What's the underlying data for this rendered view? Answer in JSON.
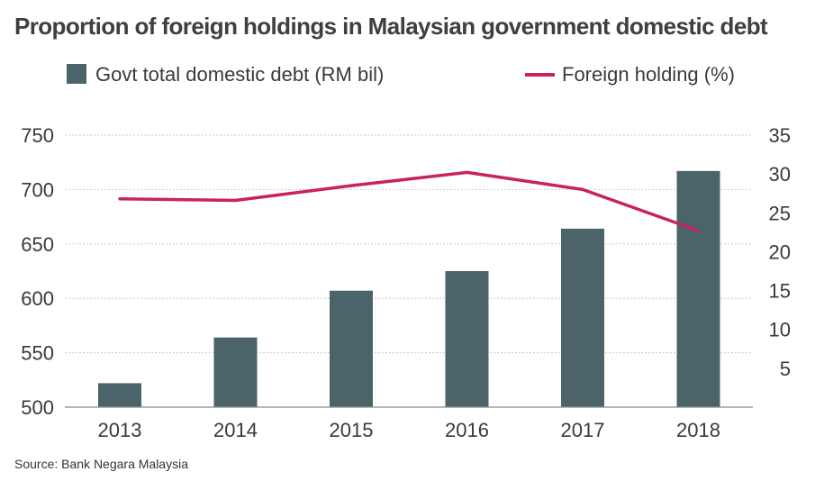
{
  "chart_data": {
    "type": "bar",
    "title": "Proportion of foreign holdings in Malaysian government domestic debt",
    "categories": [
      "2013",
      "2014",
      "2015",
      "2016",
      "2017",
      "2018"
    ],
    "series": [
      {
        "name": "Govt total domestic debt (RM bil)",
        "type": "bar",
        "axis": "left",
        "color": "#4a6469",
        "values": [
          522,
          564,
          607,
          625,
          664,
          717
        ]
      },
      {
        "name": "Foreign holding (%)",
        "type": "line",
        "axis": "right",
        "color": "#c8235a",
        "values": [
          26.8,
          26.6,
          28.5,
          30.2,
          28.0,
          22.7
        ]
      }
    ],
    "y_left": {
      "lim": [
        500,
        750
      ],
      "ticks": [
        500,
        550,
        600,
        650,
        700,
        750
      ]
    },
    "y_right": {
      "lim": [
        0,
        35
      ],
      "ticks": [
        5,
        10,
        15,
        20,
        25,
        30,
        35
      ]
    },
    "grid": "horizontal dotted",
    "legend": "top",
    "source": "Source: Bank Negara Malaysia"
  }
}
